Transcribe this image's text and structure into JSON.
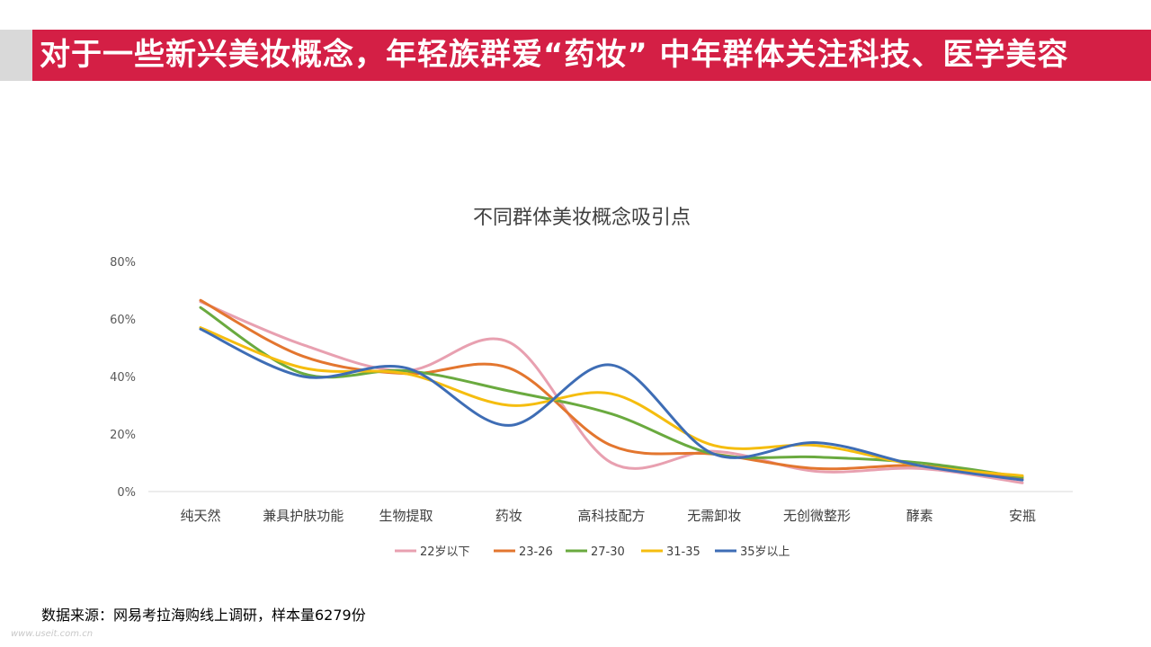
{
  "header": {
    "title": "对于一些新兴美妆概念，年轻族群爱“药妆” 中年群体关注科技、医学美容"
  },
  "footer": {
    "source": "数据来源：网易考拉海购线上调研，样本量6279份",
    "watermark": "www.useit.com.cn"
  },
  "colors": {
    "header_bg": "#d41f45",
    "grid": "#d9d9d9"
  },
  "chart_data": {
    "type": "line",
    "smooth": true,
    "title": "不同群体美妆概念吸引点",
    "xlabel": "",
    "ylabel": "",
    "ylim": [
      0,
      0.8
    ],
    "yticks": [
      0,
      0.2,
      0.4,
      0.6,
      0.8
    ],
    "ytick_labels": [
      "0%",
      "20%",
      "40%",
      "60%",
      "80%"
    ],
    "grid": false,
    "legend_position": "bottom",
    "categories": [
      "纯天然",
      "兼具护肤功能",
      "生物提取",
      "药妆",
      "高科技配方",
      "无需卸妆",
      "无创微整形",
      "酵素",
      "安瓶"
    ],
    "series": [
      {
        "name": "22岁以下",
        "color": "#e8a0b0",
        "values": [
          0.66,
          0.51,
          0.42,
          0.52,
          0.1,
          0.14,
          0.07,
          0.08,
          0.03
        ]
      },
      {
        "name": "23-26",
        "color": "#e3762f",
        "values": [
          0.665,
          0.47,
          0.41,
          0.43,
          0.16,
          0.13,
          0.08,
          0.09,
          0.045
        ]
      },
      {
        "name": "27-30",
        "color": "#6aaa3f",
        "values": [
          0.64,
          0.41,
          0.42,
          0.35,
          0.27,
          0.13,
          0.12,
          0.1,
          0.05
        ]
      },
      {
        "name": "31-35",
        "color": "#f5bd0f",
        "values": [
          0.57,
          0.43,
          0.41,
          0.3,
          0.34,
          0.16,
          0.16,
          0.09,
          0.055
        ]
      },
      {
        "name": "35岁以上",
        "color": "#3e6db5",
        "values": [
          0.565,
          0.4,
          0.43,
          0.23,
          0.44,
          0.13,
          0.17,
          0.09,
          0.04
        ]
      }
    ]
  }
}
